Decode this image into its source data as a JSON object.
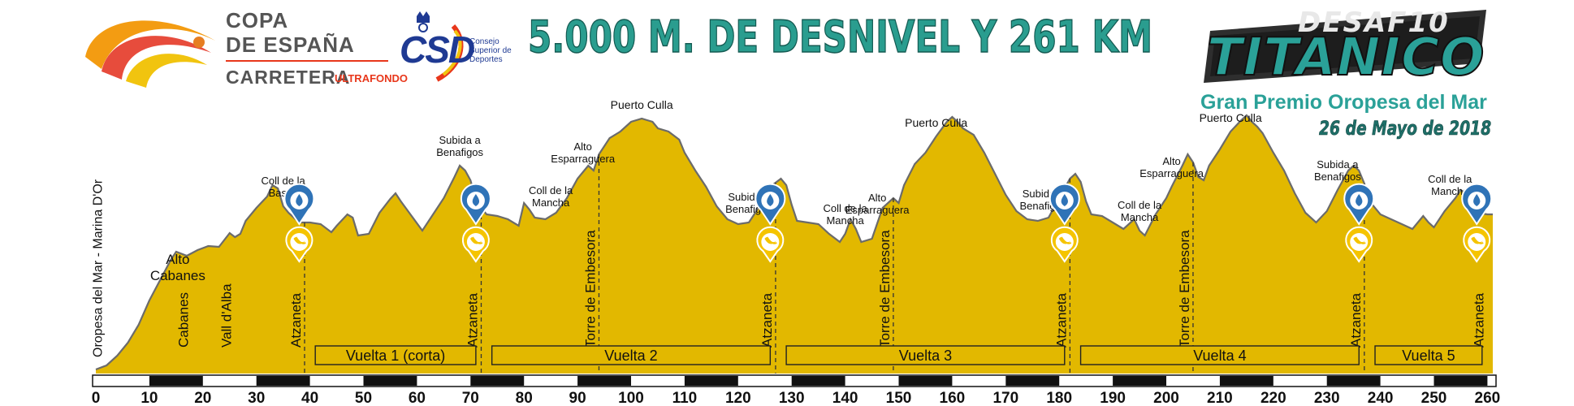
{
  "header": {
    "copa_line1": "COPA",
    "copa_line2": "DE ESPAÑA",
    "copa_line3": "CARRETERA",
    "ultrafondo": "ULTRAFONDO",
    "csd": "CSD",
    "csd_sub": [
      "Consejo",
      "Superior de",
      "Deportes"
    ],
    "main_title": "5.000 M. DE DESNIVEL Y  261 KM",
    "logo_top": "DESAF10",
    "logo_bottom": "TITANICO",
    "gran_premio": "Gran Premio Oropesa del Mar",
    "date": "26 de Mayo de 2018"
  },
  "chart_data": {
    "type": "area",
    "xlabel": "",
    "ylabel": "",
    "xlim": [
      0,
      261
    ],
    "ticks": [
      0,
      10,
      20,
      30,
      40,
      50,
      60,
      70,
      80,
      90,
      100,
      110,
      120,
      130,
      140,
      150,
      160,
      170,
      180,
      190,
      200,
      210,
      220,
      230,
      240,
      250,
      260
    ],
    "profile_color": "#e2b800",
    "profile": [
      [
        0,
        5
      ],
      [
        2,
        10
      ],
      [
        4,
        22
      ],
      [
        6,
        38
      ],
      [
        8,
        60
      ],
      [
        10,
        90
      ],
      [
        12,
        115
      ],
      [
        14,
        140
      ],
      [
        15,
        150
      ],
      [
        17,
        145
      ],
      [
        19,
        152
      ],
      [
        21,
        157
      ],
      [
        23,
        156
      ],
      [
        25,
        173
      ],
      [
        26,
        168
      ],
      [
        27,
        172
      ],
      [
        28,
        188
      ],
      [
        30,
        204
      ],
      [
        32,
        218
      ],
      [
        33,
        232
      ],
      [
        34,
        228
      ],
      [
        35,
        206
      ],
      [
        36,
        198
      ],
      [
        37,
        192
      ],
      [
        38,
        186
      ],
      [
        40,
        186
      ],
      [
        42,
        184
      ],
      [
        44,
        174
      ],
      [
        45,
        182
      ],
      [
        47,
        196
      ],
      [
        48,
        192
      ],
      [
        49,
        170
      ],
      [
        51,
        172
      ],
      [
        53,
        198
      ],
      [
        55,
        215
      ],
      [
        56,
        222
      ],
      [
        57,
        212
      ],
      [
        59,
        194
      ],
      [
        61,
        176
      ],
      [
        63,
        196
      ],
      [
        65,
        216
      ],
      [
        67,
        242
      ],
      [
        68,
        256
      ],
      [
        69,
        250
      ],
      [
        70,
        238
      ],
      [
        71,
        214
      ],
      [
        72,
        204
      ],
      [
        73,
        196
      ],
      [
        75,
        194
      ],
      [
        77,
        190
      ],
      [
        79,
        182
      ],
      [
        80,
        210
      ],
      [
        81,
        202
      ],
      [
        82,
        192
      ],
      [
        84,
        190
      ],
      [
        86,
        198
      ],
      [
        88,
        216
      ],
      [
        90,
        240
      ],
      [
        92,
        256
      ],
      [
        93,
        250
      ],
      [
        94,
        270
      ],
      [
        96,
        290
      ],
      [
        98,
        298
      ],
      [
        100,
        310
      ],
      [
        102,
        314
      ],
      [
        103,
        312
      ],
      [
        104,
        310
      ],
      [
        105,
        302
      ],
      [
        107,
        298
      ],
      [
        109,
        288
      ],
      [
        110,
        272
      ],
      [
        112,
        250
      ],
      [
        114,
        230
      ],
      [
        116,
        206
      ],
      [
        118,
        190
      ],
      [
        120,
        184
      ],
      [
        122,
        186
      ],
      [
        124,
        206
      ],
      [
        126,
        230
      ],
      [
        128,
        240
      ],
      [
        129,
        232
      ],
      [
        130,
        208
      ],
      [
        131,
        188
      ],
      [
        133,
        186
      ],
      [
        135,
        184
      ],
      [
        137,
        172
      ],
      [
        139,
        162
      ],
      [
        140,
        172
      ],
      [
        141,
        190
      ],
      [
        142,
        178
      ],
      [
        143,
        162
      ],
      [
        145,
        166
      ],
      [
        147,
        204
      ],
      [
        149,
        216
      ],
      [
        150,
        210
      ],
      [
        151,
        232
      ],
      [
        153,
        258
      ],
      [
        155,
        272
      ],
      [
        157,
        292
      ],
      [
        159,
        310
      ],
      [
        160,
        316
      ],
      [
        161,
        310
      ],
      [
        162,
        302
      ],
      [
        164,
        294
      ],
      [
        166,
        272
      ],
      [
        168,
        246
      ],
      [
        170,
        220
      ],
      [
        172,
        200
      ],
      [
        174,
        190
      ],
      [
        176,
        188
      ],
      [
        178,
        192
      ],
      [
        180,
        216
      ],
      [
        182,
        240
      ],
      [
        183,
        246
      ],
      [
        184,
        236
      ],
      [
        185,
        212
      ],
      [
        186,
        196
      ],
      [
        188,
        194
      ],
      [
        190,
        186
      ],
      [
        192,
        178
      ],
      [
        194,
        190
      ],
      [
        195,
        176
      ],
      [
        196,
        170
      ],
      [
        198,
        196
      ],
      [
        200,
        216
      ],
      [
        201,
        230
      ],
      [
        203,
        256
      ],
      [
        204,
        270
      ],
      [
        205,
        260
      ],
      [
        206,
        242
      ],
      [
        207,
        238
      ],
      [
        208,
        256
      ],
      [
        210,
        276
      ],
      [
        212,
        298
      ],
      [
        214,
        312
      ],
      [
        215,
        318
      ],
      [
        216,
        310
      ],
      [
        217,
        304
      ],
      [
        218,
        296
      ],
      [
        220,
        272
      ],
      [
        222,
        250
      ],
      [
        224,
        222
      ],
      [
        226,
        198
      ],
      [
        228,
        186
      ],
      [
        230,
        200
      ],
      [
        232,
        226
      ],
      [
        234,
        250
      ],
      [
        235,
        256
      ],
      [
        236,
        250
      ],
      [
        237,
        234
      ],
      [
        238,
        212
      ],
      [
        240,
        196
      ],
      [
        242,
        190
      ],
      [
        244,
        184
      ],
      [
        246,
        178
      ],
      [
        248,
        194
      ],
      [
        249,
        186
      ],
      [
        250,
        180
      ],
      [
        252,
        200
      ],
      [
        254,
        216
      ],
      [
        255,
        226
      ],
      [
        256,
        222
      ],
      [
        257,
        208
      ],
      [
        258,
        198
      ],
      [
        260,
        196
      ],
      [
        261,
        196
      ]
    ],
    "climbs": [
      {
        "km": 35,
        "lines": [
          "Coll de la",
          "Bassa"
        ]
      },
      {
        "km": 68,
        "lines": [
          "Subida a",
          "Benafigos"
        ]
      },
      {
        "km": 85,
        "lines": [
          "Coll de la",
          "Mancha"
        ]
      },
      {
        "km": 91,
        "lines": [
          "Alto",
          "Esparraguera"
        ]
      },
      {
        "km": 102,
        "lines": [
          "Puerto Culla"
        ]
      },
      {
        "km": 122,
        "lines": [
          "Subida a",
          "Benafigos"
        ]
      },
      {
        "km": 140,
        "lines": [
          "Coll de la",
          "Mancha"
        ]
      },
      {
        "km": 146,
        "lines": [
          "Alto",
          "Esparraguera"
        ]
      },
      {
        "km": 157,
        "lines": [
          "Puerto Culla"
        ]
      },
      {
        "km": 177,
        "lines": [
          "Subida a",
          "Benafigos"
        ]
      },
      {
        "km": 195,
        "lines": [
          "Coll de la",
          "Mancha"
        ]
      },
      {
        "km": 201,
        "lines": [
          "Alto",
          "Esparraguera"
        ]
      },
      {
        "km": 212,
        "lines": [
          "Puerto Culla"
        ]
      },
      {
        "km": 232,
        "lines": [
          "Subida a",
          "Benafigos"
        ]
      },
      {
        "km": 253,
        "lines": [
          "Coll de la",
          "Mancha"
        ]
      }
    ],
    "alto_cabanes": {
      "km": 15,
      "lines": [
        "Alto",
        "Cabanes"
      ]
    },
    "towns": [
      {
        "km": 0.5,
        "name": "Oropesa del Mar - Marina D'Or",
        "dashed": false
      },
      {
        "km": 18,
        "name": "Cabanes",
        "dashed": false
      },
      {
        "km": 26,
        "name": "Vall d'Alba",
        "dashed": false
      },
      {
        "km": 39,
        "name": "Atzaneta",
        "dashed": true
      },
      {
        "km": 72,
        "name": "Atzaneta",
        "dashed": true
      },
      {
        "km": 94,
        "name": "Torre de Embesora",
        "dashed": true
      },
      {
        "km": 127,
        "name": "Atzaneta",
        "dashed": true
      },
      {
        "km": 149,
        "name": "Torre de Embesora",
        "dashed": true
      },
      {
        "km": 182,
        "name": "Atzaneta",
        "dashed": true
      },
      {
        "km": 205,
        "name": "Torre de Embesora",
        "dashed": true
      },
      {
        "km": 237,
        "name": "Atzaneta",
        "dashed": true
      },
      {
        "km": 260,
        "name": "Atzaneta",
        "dashed": false
      }
    ],
    "laps": [
      {
        "from": 41,
        "to": 71,
        "label": "Vuelta 1 (corta)"
      },
      {
        "from": 74,
        "to": 126,
        "label": "Vuelta 2"
      },
      {
        "from": 129,
        "to": 181,
        "label": "Vuelta 3"
      },
      {
        "from": 184,
        "to": 236,
        "label": "Vuelta 4"
      },
      {
        "from": 239,
        "to": 259,
        "label": "Vuelta 5"
      }
    ],
    "feed_zones": [
      {
        "km": 38,
        "water": true,
        "food": true
      },
      {
        "km": 71,
        "water": true,
        "food": true
      },
      {
        "km": 126,
        "water": true,
        "food": true
      },
      {
        "km": 181,
        "water": true,
        "food": true
      },
      {
        "km": 236,
        "water": true,
        "food": true
      },
      {
        "km": 258,
        "water": true,
        "food": true
      }
    ]
  }
}
